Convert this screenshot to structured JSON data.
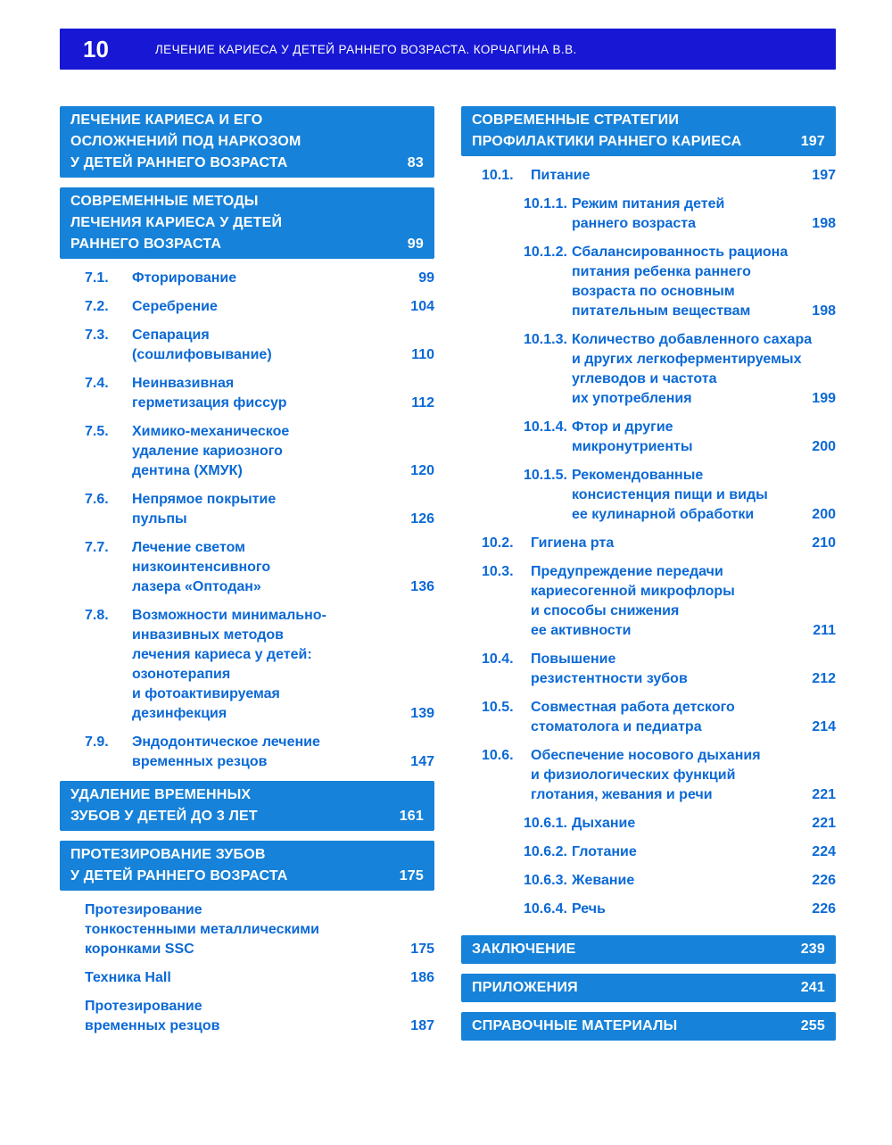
{
  "header": {
    "page_number": "10",
    "running_title": "ЛЕЧЕНИЕ КАРИЕСА У ДЕТЕЙ РАННЕГО ВОЗРАСТА. КОРЧАГИНА В.В."
  },
  "colors": {
    "header_bar": "#1717d4",
    "section_block": "#1682d9",
    "entry_text": "#0b69d6",
    "page_background": "#ffffff"
  },
  "left": {
    "blocks": [
      {
        "title": "ЛЕЧЕНИЕ КАРИЕСА И ЕГО\nОСЛОЖНЕНИЙ ПОД НАРКОЗОМ\nУ ДЕТЕЙ РАННЕГО ВОЗРАСТА",
        "page": "83"
      },
      {
        "title": "СОВРЕМЕННЫЕ МЕТОДЫ\nЛЕЧЕНИЯ КАРИЕСА У ДЕТЕЙ\nРАННЕГО ВОЗРАСТА",
        "page": "99"
      },
      {
        "title": "УДАЛЕНИЕ ВРЕМЕННЫХ\nЗУБОВ У ДЕТЕЙ ДО 3 ЛЕТ",
        "page": "161"
      },
      {
        "title": "ПРОТЕЗИРОВАНИЕ ЗУБОВ\nУ ДЕТЕЙ РАННЕГО ВОЗРАСТА",
        "page": "175"
      }
    ],
    "items": [
      {
        "num": "7.1.",
        "title": "Фторирование",
        "page": "99"
      },
      {
        "num": "7.2.",
        "title": "Серебрение",
        "page": "104"
      },
      {
        "num": "7.3.",
        "title": "Сепарация\n(сошлифовывание)",
        "page": "110"
      },
      {
        "num": "7.4.",
        "title": "Неинвазивная\nгерметизация фиссур",
        "page": "112"
      },
      {
        "num": "7.5.",
        "title": "Химико-механическое\nудаление кариозного\nдентина (ХМУК)",
        "page": "120"
      },
      {
        "num": "7.6.",
        "title": "Непрямое покрытие\nпульпы",
        "page": "126"
      },
      {
        "num": "7.7.",
        "title": "Лечение светом\nнизкоинтенсивного\nлазера «Оптодан»",
        "page": "136"
      },
      {
        "num": "7.8.",
        "title": "Возможности минимально-\nинвазивных методов\nлечения кариеса у детей:\nозонотерапия\nи фотоактивируемая\nдезинфекция",
        "page": "139"
      },
      {
        "num": "7.9.",
        "title": "Эндодонтическое лечение\nвременных резцов",
        "page": "147"
      }
    ],
    "plain_items": [
      {
        "title": "Протезирование\nтонкостенными металлическими\nкоронками SSC",
        "page": "175"
      },
      {
        "title": "Техника Hall",
        "page": "186"
      },
      {
        "title": "Протезирование\nвременных резцов",
        "page": "187"
      }
    ]
  },
  "right": {
    "blocks": [
      {
        "title": "СОВРЕМЕННЫЕ СТРАТЕГИИ\nПРОФИЛАКТИКИ РАННЕГО КАРИЕСА",
        "page": "197"
      }
    ],
    "items": [
      {
        "num": "10.1.",
        "title": "Питание",
        "page": "197"
      },
      {
        "num": "10.1.1.",
        "title": "Режим питания детей\nраннего возраста",
        "page": "198"
      },
      {
        "num": "10.1.2.",
        "title": "Сбалансированность рациона\nпитания ребенка раннего\nвозраста по основным\nпитательным веществам",
        "page": "198"
      },
      {
        "num": "10.1.3.",
        "title": "Количество добавленного сахара\nи других легкоферментируемых\nуглеводов и частота\nих употребления",
        "page": "199"
      },
      {
        "num": "10.1.4.",
        "title": "Фтор и другие\nмикронутриенты",
        "page": "200"
      },
      {
        "num": "10.1.5.",
        "title": "Рекомендованные\nконсистенция пищи и виды\nее кулинарной обработки",
        "page": "200"
      },
      {
        "num": "10.2.",
        "title": "Гигиена рта",
        "page": "210"
      },
      {
        "num": "10.3.",
        "title": "Предупреждение передачи\nкариесогенной микрофлоры\nи способы снижения\nее активности",
        "page": "211"
      },
      {
        "num": "10.4.",
        "title": "Повышение\nрезистентности зубов",
        "page": "212"
      },
      {
        "num": "10.5.",
        "title": "Совместная работа детского\nстоматолога и педиатра",
        "page": "214"
      },
      {
        "num": "10.6.",
        "title": "Обеспечение носового дыхания\nи физиологических функций\nглотания, жевания и речи",
        "page": "221"
      },
      {
        "num": "10.6.1.",
        "title": "Дыхание",
        "page": "221"
      },
      {
        "num": "10.6.2.",
        "title": "Глотание",
        "page": "224"
      },
      {
        "num": "10.6.3.",
        "title": "Жевание",
        "page": "226"
      },
      {
        "num": "10.6.4.",
        "title": "Речь",
        "page": "226"
      }
    ],
    "bars": [
      {
        "title": "ЗАКЛЮЧЕНИЕ",
        "page": "239"
      },
      {
        "title": "ПРИЛОЖЕНИЯ",
        "page": "241"
      },
      {
        "title": "СПРАВОЧНЫЕ МАТЕРИАЛЫ",
        "page": "255"
      }
    ]
  }
}
